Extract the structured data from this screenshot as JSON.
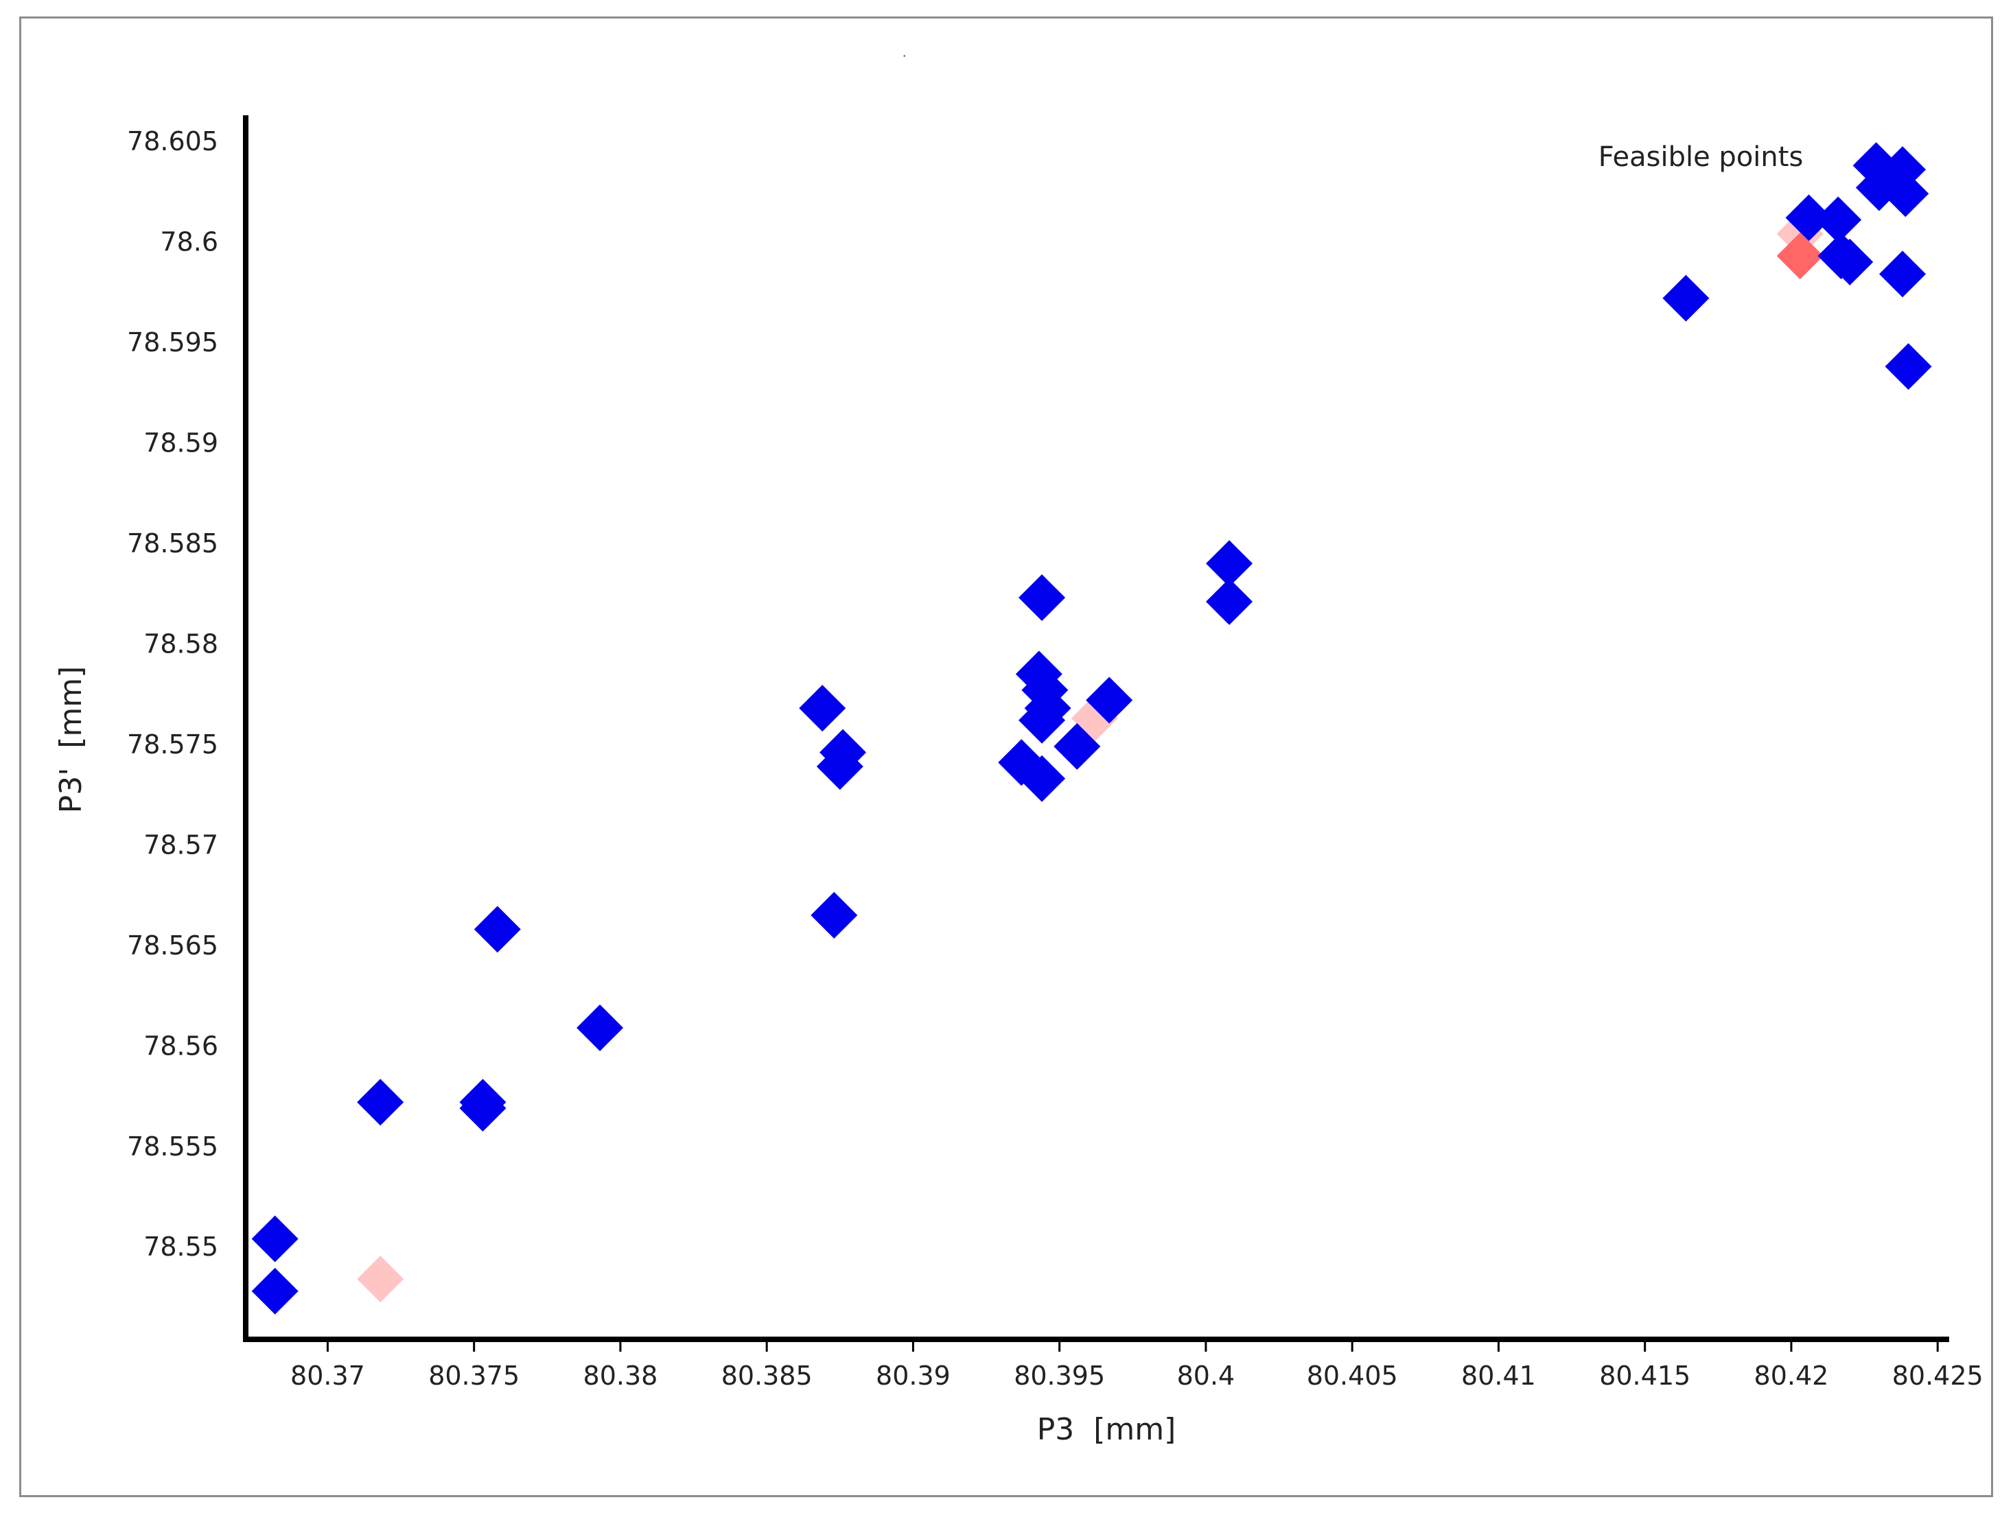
{
  "chart_data": {
    "type": "scatter",
    "title": "",
    "xlabel": "P3  [mm]",
    "ylabel": "P3'  [mm]",
    "xlim": [
      80.3672,
      80.4253
    ],
    "ylim": [
      78.5454,
      78.6063
    ],
    "x_ticks": [
      80.37,
      80.375,
      80.38,
      80.385,
      80.39,
      80.395,
      80.4,
      80.405,
      80.41,
      80.415,
      80.42,
      80.425
    ],
    "x_tick_labels": [
      "80.37",
      "80.375",
      "80.38",
      "80.385",
      "80.39",
      "80.395",
      "80.4",
      "80.405",
      "80.41",
      "80.415",
      "80.42",
      "80.425"
    ],
    "y_ticks": [
      78.55,
      78.555,
      78.56,
      78.565,
      78.57,
      78.575,
      78.58,
      78.585,
      78.59,
      78.595,
      78.6,
      78.605
    ],
    "y_tick_labels": [
      "78.55",
      "78.555",
      "78.56",
      "78.565",
      "78.57",
      "78.575",
      "78.58",
      "78.585",
      "78.59",
      "78.595",
      "78.6",
      "78.605"
    ],
    "grid": false,
    "annotation": "Feasible points",
    "colors": {
      "blue": "#0000ee",
      "red": "#ff6666",
      "pink": "#ffc4c4",
      "axis": "#000000"
    },
    "series": [
      {
        "marker": "diamond",
        "color": "#ffc4c4",
        "points": [
          {
            "x": 80.3718,
            "y": 78.5484
          },
          {
            "x": 80.3962,
            "y": 78.5763
          },
          {
            "x": 80.4203,
            "y": 78.6004
          }
        ]
      },
      {
        "marker": "diamond",
        "color": "#ff6666",
        "points": [
          {
            "x": 80.4203,
            "y": 78.5993
          }
        ]
      },
      {
        "marker": "diamond",
        "color": "#0000ee",
        "points": [
          {
            "x": 80.3682,
            "y": 78.5504
          },
          {
            "x": 80.3682,
            "y": 78.5478
          },
          {
            "x": 80.3718,
            "y": 78.5572
          },
          {
            "x": 80.3753,
            "y": 78.5572
          },
          {
            "x": 80.3753,
            "y": 78.5569
          },
          {
            "x": 80.3758,
            "y": 78.5658
          },
          {
            "x": 80.3793,
            "y": 78.5609
          },
          {
            "x": 80.3869,
            "y": 78.5768
          },
          {
            "x": 80.3876,
            "y": 78.5746
          },
          {
            "x": 80.3875,
            "y": 78.5739
          },
          {
            "x": 80.3873,
            "y": 78.5665
          },
          {
            "x": 80.3937,
            "y": 78.5741
          },
          {
            "x": 80.3944,
            "y": 78.5733
          },
          {
            "x": 80.3943,
            "y": 78.5785
          },
          {
            "x": 80.3944,
            "y": 78.5823
          },
          {
            "x": 80.3945,
            "y": 78.5777
          },
          {
            "x": 80.3946,
            "y": 78.5768
          },
          {
            "x": 80.3944,
            "y": 78.5762
          },
          {
            "x": 80.3956,
            "y": 78.5749
          },
          {
            "x": 80.3967,
            "y": 78.5772
          },
          {
            "x": 80.4008,
            "y": 78.584
          },
          {
            "x": 80.4008,
            "y": 78.5821
          },
          {
            "x": 80.4164,
            "y": 78.5972
          },
          {
            "x": 80.4206,
            "y": 78.6012
          },
          {
            "x": 80.4216,
            "y": 78.6011
          },
          {
            "x": 80.4217,
            "y": 78.5993
          },
          {
            "x": 80.422,
            "y": 78.599
          },
          {
            "x": 80.4229,
            "y": 78.6038
          },
          {
            "x": 80.423,
            "y": 78.6027
          },
          {
            "x": 80.4238,
            "y": 78.6036
          },
          {
            "x": 80.4239,
            "y": 78.6024
          },
          {
            "x": 80.4238,
            "y": 78.5984
          },
          {
            "x": 80.424,
            "y": 78.5938
          }
        ]
      }
    ]
  }
}
